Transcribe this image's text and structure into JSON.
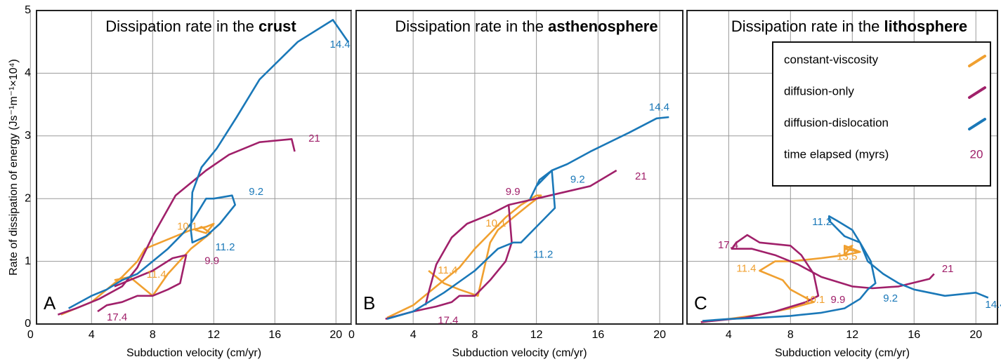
{
  "chart_data": [
    {
      "type": "line",
      "panel_label": "A",
      "title": {
        "text": "Dissipation rate in the",
        "emphasis": "crust"
      },
      "ylabel": "Rate of dissipation of energy (Js⁻¹m⁻¹×10⁴)",
      "xlabel": "Subduction velocity (cm/yr)",
      "xlim": [
        0.4,
        21
      ],
      "xticks": [
        0,
        4,
        8,
        12,
        16,
        20
      ],
      "ylim": [
        0,
        5
      ],
      "yticks": [
        0,
        1,
        2,
        3,
        4,
        5
      ],
      "grid": true,
      "series": [
        {
          "color": "#f0a030",
          "x": [
            2,
            3,
            4,
            5,
            6,
            7,
            7.5,
            9,
            10.5,
            11.5,
            12,
            11.5,
            10.8,
            11.2,
            11.8,
            10.5,
            9,
            8,
            7.5,
            6.5,
            5.5
          ],
          "values": [
            0.15,
            0.25,
            0.35,
            0.55,
            0.75,
            1.0,
            1.2,
            1.35,
            1.5,
            1.55,
            1.6,
            1.45,
            1.5,
            1.55,
            1.45,
            1.2,
            0.8,
            0.45,
            0.55,
            0.75,
            0.7
          ]
        },
        {
          "color": "#a0206a",
          "x": [
            1.8,
            3,
            4.5,
            6,
            7,
            8,
            9.5,
            11.5,
            13,
            15,
            17.1,
            17.3,
            null,
            4.4,
            5,
            6,
            7,
            8,
            9,
            9.8,
            10.2,
            9.3,
            8,
            6.5,
            5.5
          ],
          "values": [
            0.15,
            0.25,
            0.4,
            0.6,
            0.9,
            1.4,
            2.05,
            2.45,
            2.7,
            2.9,
            2.95,
            2.75,
            null,
            0.2,
            0.3,
            0.35,
            0.45,
            0.45,
            0.55,
            0.65,
            1.1,
            1.05,
            0.85,
            0.7,
            0.6
          ]
        },
        {
          "color": "#1a78b8",
          "x": [
            2.5,
            4,
            5,
            6,
            7,
            8,
            9,
            10,
            10.5,
            11,
            11.5,
            12,
            13.2,
            13.4,
            12.4,
            11.5,
            10.6,
            10.5,
            10.6,
            11.2,
            12.2,
            13.5,
            15,
            17.5,
            19.8,
            20.8
          ],
          "values": [
            0.25,
            0.45,
            0.55,
            0.7,
            0.8,
            1.0,
            1.2,
            1.45,
            1.6,
            1.8,
            2.0,
            2.0,
            2.05,
            1.9,
            1.6,
            1.4,
            1.3,
            1.5,
            2.1,
            2.5,
            2.8,
            3.3,
            3.9,
            4.5,
            4.85,
            4.5
          ]
        }
      ],
      "annotations": [
        {
          "text": "14.4",
          "x": 19.6,
          "y": 4.45,
          "color": "#1a78b8"
        },
        {
          "text": "21",
          "x": 18.2,
          "y": 2.95,
          "color": "#a0206a"
        },
        {
          "text": "9.2",
          "x": 14.3,
          "y": 2.1,
          "color": "#1a78b8"
        },
        {
          "text": "10.1",
          "x": 9.6,
          "y": 1.55,
          "color": "#f0a030"
        },
        {
          "text": "11.2",
          "x": 12.1,
          "y": 1.22,
          "color": "#1a78b8"
        },
        {
          "text": "11.4",
          "x": 7.6,
          "y": 0.78,
          "color": "#f0a030"
        },
        {
          "text": "9.9",
          "x": 11.4,
          "y": 1.0,
          "color": "#a0206a"
        },
        {
          "text": "17.4",
          "x": 5.0,
          "y": 0.1,
          "color": "#a0206a"
        }
      ]
    },
    {
      "type": "line",
      "panel_label": "B",
      "title": {
        "text": "Dissipation rate in the",
        "emphasis": "asthenosphere"
      },
      "xlabel": "Subduction velocity (cm/yr)",
      "xlim": [
        0.3,
        21.5
      ],
      "xticks": [
        0,
        4,
        8,
        12,
        16,
        20
      ],
      "ylim": [
        0,
        5
      ],
      "yticks": [
        0,
        1,
        2,
        3,
        4,
        5
      ],
      "grid": true,
      "series": [
        {
          "color": "#f0a030",
          "x": [
            2.3,
            4,
            5,
            6,
            7,
            8,
            9,
            10,
            11,
            12,
            12.3,
            11.5,
            10.5,
            9.5,
            9,
            8.2,
            7,
            6,
            5.5,
            5
          ],
          "values": [
            0.1,
            0.3,
            0.5,
            0.7,
            0.9,
            1.2,
            1.45,
            1.7,
            1.9,
            2.05,
            2.05,
            1.9,
            1.7,
            1.5,
            1.3,
            0.45,
            0.55,
            0.65,
            0.75,
            0.85
          ]
        },
        {
          "color": "#a0206a",
          "x": [
            2.2,
            4,
            5.5,
            6.5,
            7,
            8,
            9,
            10,
            10.4,
            10.2,
            12,
            15.5,
            17.2,
            null,
            10.2,
            9,
            7.5,
            6.5,
            5.5,
            5,
            4.8
          ],
          "values": [
            0.08,
            0.2,
            0.28,
            0.35,
            0.45,
            0.45,
            0.7,
            1.0,
            1.3,
            1.9,
            2.0,
            2.2,
            2.45,
            null,
            1.9,
            1.75,
            1.6,
            1.38,
            0.95,
            0.5,
            0.3
          ]
        },
        {
          "color": "#1a78b8",
          "x": [
            2.3,
            4,
            6,
            8,
            9.5,
            10.5,
            11,
            13.2,
            13,
            12.2,
            11.6,
            12,
            13,
            14,
            15.5,
            18,
            19.8,
            20.6
          ],
          "values": [
            0.08,
            0.2,
            0.5,
            0.85,
            1.2,
            1.3,
            1.3,
            1.85,
            2.45,
            2.3,
            2.0,
            2.2,
            2.45,
            2.55,
            2.75,
            3.05,
            3.28,
            3.3
          ]
        }
      ],
      "annotations": [
        {
          "text": "14.4",
          "x": 19.3,
          "y": 3.45,
          "color": "#1a78b8"
        },
        {
          "text": "21",
          "x": 18.4,
          "y": 2.35,
          "color": "#a0206a"
        },
        {
          "text": "9.2",
          "x": 14.2,
          "y": 2.3,
          "color": "#1a78b8"
        },
        {
          "text": "9.9",
          "x": 10.0,
          "y": 2.1,
          "color": "#a0206a"
        },
        {
          "text": "10.1",
          "x": 8.7,
          "y": 1.6,
          "color": "#f0a030"
        },
        {
          "text": "11.2",
          "x": 11.8,
          "y": 1.1,
          "color": "#1a78b8"
        },
        {
          "text": "11.4",
          "x": 5.6,
          "y": 0.85,
          "color": "#f0a030"
        },
        {
          "text": "17.4",
          "x": 5.6,
          "y": 0.05,
          "color": "#a0206a"
        }
      ]
    },
    {
      "type": "line",
      "panel_label": "C",
      "title": {
        "text": "Dissipation rate in the",
        "emphasis": "lithosphere"
      },
      "xlabel": "Subduction velocity (cm/yr)",
      "xlim": [
        1.3,
        21.4
      ],
      "xticks": [
        4,
        8,
        12,
        16,
        20
      ],
      "ylim": [
        0,
        5
      ],
      "yticks": [
        0,
        1,
        2,
        3,
        4,
        5
      ],
      "grid": true,
      "legend": "upper right",
      "legend_time": {
        "label": "time elapsed (myrs)",
        "example": "20"
      },
      "series": [
        {
          "name": "constant-viscosity",
          "color": "#f0a030",
          "x": [
            2.2,
            4,
            6,
            8,
            9.5,
            8,
            7.5,
            6,
            7,
            8,
            10,
            11.5,
            12.5,
            11.5,
            12,
            11.5,
            11.5,
            12.5
          ],
          "values": [
            0.03,
            0.08,
            0.15,
            0.25,
            0.35,
            0.55,
            0.7,
            0.85,
            1.0,
            1.0,
            1.05,
            1.1,
            1.15,
            1.2,
            1.25,
            1.1,
            1.25,
            1.15
          ]
        },
        {
          "name": "diffusion-only",
          "color": "#a0206a",
          "x": [
            2.2,
            5,
            7,
            9,
            9.8,
            9.5,
            8.7,
            8,
            6,
            5.2,
            4.5,
            4.2,
            5.5,
            7,
            8.5,
            10,
            12,
            13.3,
            15,
            17,
            17.3
          ],
          "values": [
            0.03,
            0.1,
            0.2,
            0.35,
            0.45,
            0.8,
            1.1,
            1.25,
            1.3,
            1.42,
            1.3,
            1.2,
            1.2,
            1.1,
            0.95,
            0.75,
            0.6,
            0.57,
            0.6,
            0.72,
            0.8
          ]
        },
        {
          "name": "diffusion-dislocation",
          "color": "#1a78b8",
          "x": [
            2.3,
            4,
            6,
            8,
            10,
            11.5,
            12.5,
            13,
            13.5,
            13.2,
            12.5,
            12,
            11,
            10.5,
            10.5,
            11.5,
            12.5,
            13,
            14,
            15,
            16,
            18,
            20,
            20.8
          ],
          "values": [
            0.05,
            0.08,
            0.1,
            0.13,
            0.18,
            0.25,
            0.4,
            0.55,
            0.65,
            1.0,
            1.3,
            1.5,
            1.65,
            1.72,
            1.65,
            1.4,
            1.3,
            1.0,
            0.8,
            0.65,
            0.55,
            0.45,
            0.5,
            0.42
          ]
        }
      ],
      "annotations": [
        {
          "text": "11.2",
          "x": 9.4,
          "y": 1.62,
          "color": "#1a78b8"
        },
        {
          "text": "17.4",
          "x": 3.3,
          "y": 1.25,
          "color": "#a0206a"
        },
        {
          "text": "13.5",
          "x": 11.0,
          "y": 1.07,
          "color": "#f0a030"
        },
        {
          "text": "11.4",
          "x": 4.5,
          "y": 0.88,
          "color": "#f0a030"
        },
        {
          "text": "21",
          "x": 17.8,
          "y": 0.87,
          "color": "#a0206a"
        },
        {
          "text": "10.1",
          "x": 8.9,
          "y": 0.38,
          "color": "#f0a030"
        },
        {
          "text": "9.9",
          "x": 10.6,
          "y": 0.38,
          "color": "#a0206a"
        },
        {
          "text": "9.2",
          "x": 14.0,
          "y": 0.4,
          "color": "#1a78b8"
        },
        {
          "text": "14.4",
          "x": 20.6,
          "y": 0.3,
          "color": "#1a78b8"
        }
      ]
    }
  ]
}
